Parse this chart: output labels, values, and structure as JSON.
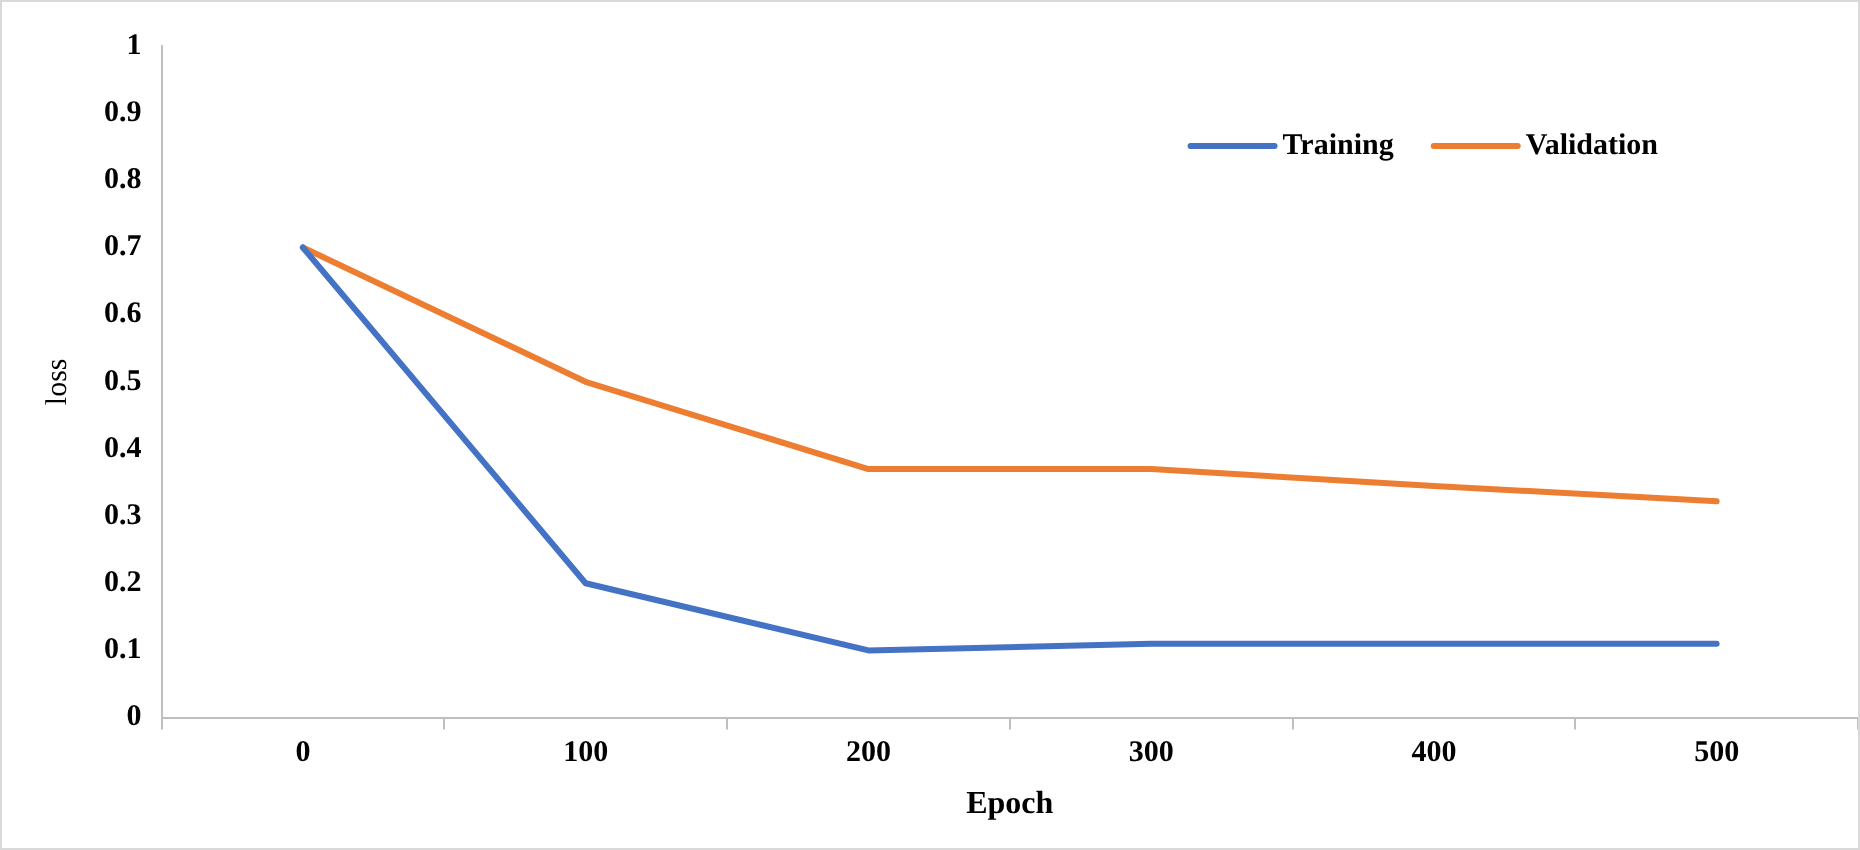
{
  "chart_data": {
    "type": "line",
    "xlabel": "Epoch",
    "ylabel": "loss",
    "categories": [
      "0",
      "100",
      "200",
      "300",
      "400",
      "500"
    ],
    "series": [
      {
        "name": "Training",
        "color": "#4472c4",
        "values": [
          0.7,
          0.2,
          0.1,
          0.11,
          0.11,
          0.11
        ]
      },
      {
        "name": "Validation",
        "color": "#ed7d31",
        "values": [
          0.7,
          0.5,
          0.37,
          0.37,
          0.345,
          0.322
        ]
      }
    ],
    "ylim": [
      0,
      1
    ],
    "yticks": [
      0,
      0.1,
      0.2,
      0.3,
      0.4,
      0.5,
      0.6,
      0.7,
      0.8,
      0.9,
      1
    ],
    "grid": false,
    "legend": "top right",
    "marker": "none",
    "line_style": "solid"
  }
}
